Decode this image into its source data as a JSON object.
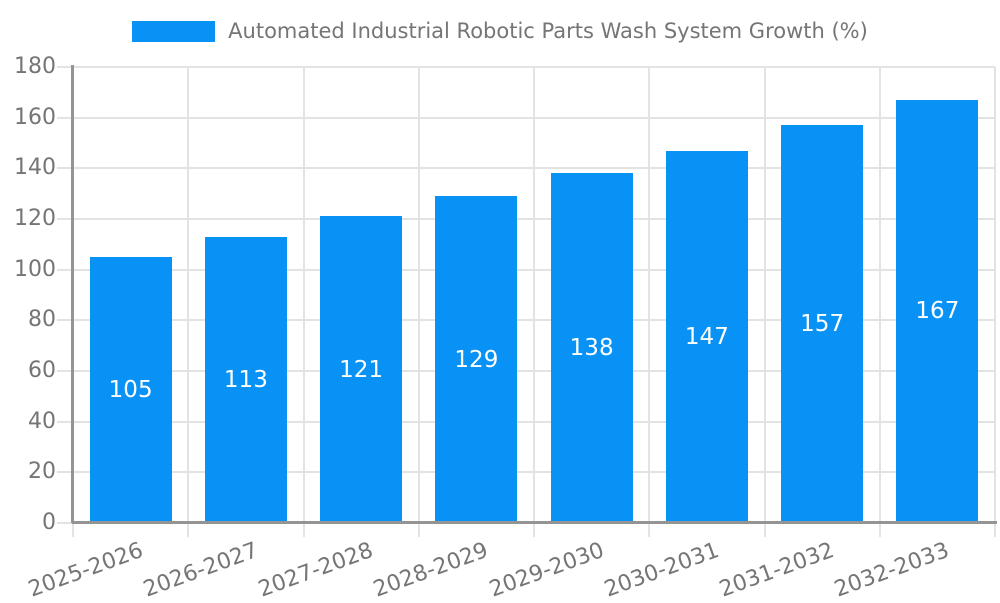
{
  "chart_data": {
    "type": "bar",
    "title": "Automated Industrial Robotic Parts Wash System Growth (%)",
    "categories": [
      "2025-2026",
      "2026-2027",
      "2027-2028",
      "2028-2029",
      "2029-2030",
      "2030-2031",
      "2031-2032",
      "2032-2033"
    ],
    "values": [
      105,
      113,
      121,
      129,
      138,
      147,
      157,
      167
    ],
    "xlabel": "",
    "ylabel": "",
    "ylim": [
      0,
      180
    ],
    "yticks": [
      0,
      20,
      40,
      60,
      80,
      100,
      120,
      140,
      160,
      180
    ],
    "grid": true,
    "legend_position": "top",
    "bar_value_labels_inside": true,
    "colors": {
      "bar": "#0992f5",
      "bar_value_label": "#ffffff",
      "axis_text": "#757575",
      "gridline": "#e3e3e3",
      "axis_line": "#949494",
      "background": "#ffffff"
    }
  }
}
